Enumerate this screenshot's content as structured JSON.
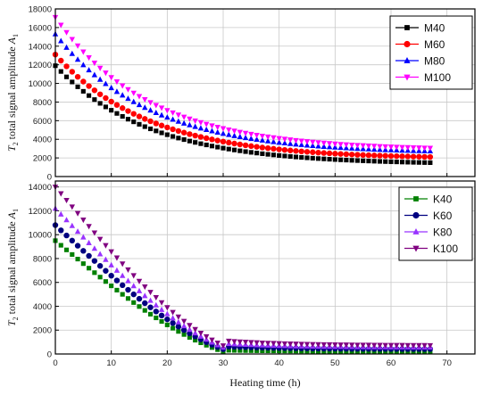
{
  "chart_data": [
    {
      "type": "scatter",
      "xlabel": "",
      "ylabel": "T2 total signal amplitude A1",
      "ylabel_parts": {
        "main": "T",
        "sub1": "2",
        "mid": " total signal amplitude ",
        "var": "A",
        "sub2": "1"
      },
      "xlim": [
        0,
        75
      ],
      "ylim": [
        0,
        18000
      ],
      "xticks": [
        0,
        10,
        20,
        30,
        40,
        50,
        60,
        70
      ],
      "yticks": [
        0,
        2000,
        4000,
        6000,
        8000,
        10000,
        12000,
        14000,
        16000,
        18000
      ],
      "grid": true,
      "legend_position": "top-right",
      "x_range": [
        0,
        67
      ],
      "series": [
        {
          "name": "M40",
          "color": "#000000",
          "marker": "square",
          "y0": 11900,
          "y_end": 1300,
          "k": 0.06
        },
        {
          "name": "M60",
          "color": "#ff0000",
          "marker": "circle",
          "y0": 13100,
          "y_end": 1900,
          "k": 0.06
        },
        {
          "name": "M80",
          "color": "#0000ff",
          "marker": "triangle-up",
          "y0": 15300,
          "y_end": 2500,
          "k": 0.06
        },
        {
          "name": "M100",
          "color": "#ff00ff",
          "marker": "triangle-down",
          "y0": 17100,
          "y_end": 2800,
          "k": 0.06
        }
      ]
    },
    {
      "type": "scatter",
      "xlabel": "Heating time (h)",
      "ylabel": "T2 total signal amplitude A1",
      "ylabel_parts": {
        "main": "T",
        "sub1": "2",
        "mid": " total signal amplitude ",
        "var": "A",
        "sub2": "1"
      },
      "xlim": [
        0,
        75
      ],
      "ylim": [
        0,
        14500
      ],
      "xticks": [
        0,
        10,
        20,
        30,
        40,
        50,
        60,
        70
      ],
      "yticks": [
        0,
        2000,
        4000,
        6000,
        8000,
        10000,
        12000,
        14000
      ],
      "grid": true,
      "legend_position": "top-right",
      "x_range": [
        0,
        67
      ],
      "series": [
        {
          "name": "K40",
          "color": "#008000",
          "marker": "square",
          "y0": 9500,
          "y_end": 200,
          "k": 0.08
        },
        {
          "name": "K60",
          "color": "#000080",
          "marker": "circle",
          "y0": 10800,
          "y_end": 400,
          "k": 0.08
        },
        {
          "name": "K80",
          "color": "#9933ff",
          "marker": "triangle-up",
          "y0": 12200,
          "y_end": 550,
          "k": 0.08
        },
        {
          "name": "K100",
          "color": "#800080",
          "marker": "triangle-down",
          "y0": 14000,
          "y_end": 700,
          "k": 0.08
        }
      ]
    }
  ]
}
